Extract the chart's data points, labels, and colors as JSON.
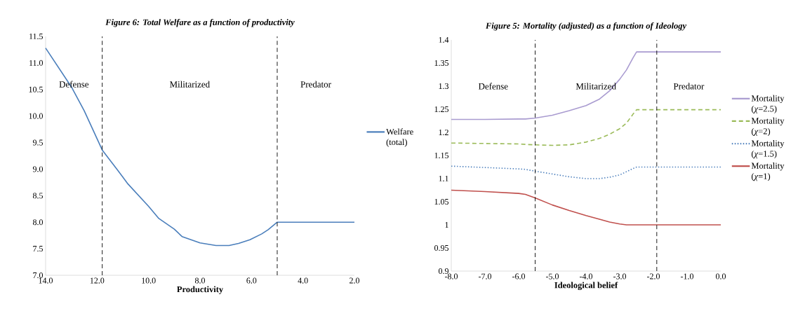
{
  "chart_data": [
    {
      "type": "line",
      "title": "Figure 6: Total Welfare as a function of productivity",
      "xlabel": "Productivity",
      "x": [
        14.0,
        13.0,
        12.5,
        11.8,
        11.2,
        10.8,
        10.0,
        9.6,
        9.0,
        8.7,
        8.0,
        7.38,
        6.87,
        6.5,
        6.06,
        5.6,
        5.35,
        5.0,
        4.0,
        3.0,
        2.0
      ],
      "series": [
        {
          "name": "Welfare (total)",
          "color": "#4a7ebb",
          "line_style": "solid",
          "values": [
            11.28,
            10.55,
            10.1,
            9.36,
            8.98,
            8.72,
            8.3,
            8.07,
            7.87,
            7.73,
            7.61,
            7.56,
            7.56,
            7.6,
            7.67,
            7.78,
            7.86,
            8.0,
            8.0,
            8.0,
            8.0
          ]
        }
      ],
      "xlim": [
        14,
        2
      ],
      "ylim": [
        7,
        11.5
      ],
      "xticks": [
        {
          "value": 14,
          "label": "14.0"
        },
        {
          "value": 12,
          "label": "12.0"
        },
        {
          "value": 10,
          "label": "10.0"
        },
        {
          "value": 8,
          "label": "8.0"
        },
        {
          "value": 6,
          "label": "6.0"
        },
        {
          "value": 4,
          "label": "4.0"
        },
        {
          "value": 2,
          "label": "2.0"
        }
      ],
      "yticks": [
        {
          "value": 7,
          "label": "7.0"
        },
        {
          "value": 7.5,
          "label": "7.5"
        },
        {
          "value": 8,
          "label": "8.0"
        },
        {
          "value": 8.5,
          "label": "8.5"
        },
        {
          "value": 9,
          "label": "9.0"
        },
        {
          "value": 9.5,
          "label": "9.5"
        },
        {
          "value": 10,
          "label": "10.0"
        },
        {
          "value": 10.5,
          "label": "10.5"
        },
        {
          "value": 11,
          "label": "11.0"
        },
        {
          "value": 11.5,
          "label": "11.5"
        }
      ],
      "ref_lines": [
        {
          "axis": "x",
          "value": 11.8,
          "color": "#000000",
          "line_style": "dashed"
        },
        {
          "axis": "x",
          "value": 5.0,
          "color": "#000000",
          "line_style": "dashed"
        }
      ],
      "annotations": [
        "Defense",
        "Militarized",
        "Predator"
      ],
      "legend": "right",
      "grid": false
    },
    {
      "type": "line",
      "title": "Figure 5: Mortality (adjusted)  as a function of Ideology",
      "xlabel": "Ideological belief",
      "x": [
        -8.0,
        -7.0,
        -6.0,
        -5.8,
        -5.5,
        -5.0,
        -4.5,
        -4.0,
        -3.6,
        -3.3,
        -3.0,
        -2.8,
        -2.6,
        -2.5,
        -2.0,
        -1.0,
        0.0
      ],
      "series": [
        {
          "name": "Mortality (*χ*=2.5)",
          "color": "#a99bd0",
          "line_style": "solid",
          "values": [
            1.228,
            1.228,
            1.229,
            1.229,
            1.231,
            1.237,
            1.247,
            1.258,
            1.272,
            1.29,
            1.315,
            1.335,
            1.362,
            1.374,
            1.374,
            1.374,
            1.374
          ]
        },
        {
          "name": "Mortality (*χ*=2)",
          "color": "#9bbb59",
          "line_style": "dashed",
          "values": [
            1.177,
            1.176,
            1.175,
            1.174,
            1.173,
            1.172,
            1.173,
            1.179,
            1.187,
            1.196,
            1.208,
            1.22,
            1.24,
            1.249,
            1.249,
            1.249,
            1.249
          ]
        },
        {
          "name": "Mortality (*χ*=1.5)",
          "color": "#4f81bd",
          "line_style": "dotted",
          "values": [
            1.127,
            1.124,
            1.121,
            1.12,
            1.116,
            1.11,
            1.104,
            1.1,
            1.1,
            1.103,
            1.108,
            1.115,
            1.122,
            1.125,
            1.125,
            1.125,
            1.125
          ]
        },
        {
          "name": "Mortality (*χ*=1)",
          "color": "#c0504d",
          "line_style": "solid",
          "values": [
            1.075,
            1.072,
            1.068,
            1.066,
            1.058,
            1.043,
            1.031,
            1.02,
            1.012,
            1.006,
            1.002,
            1.0,
            1.0,
            1.0,
            1.0,
            1.0,
            1.0
          ]
        }
      ],
      "xlim": [
        -8,
        0
      ],
      "ylim": [
        0.9,
        1.4
      ],
      "xticks": [
        {
          "value": -8,
          "label": "-8.0"
        },
        {
          "value": -7,
          "label": "-7.0"
        },
        {
          "value": -6,
          "label": "-6.0"
        },
        {
          "value": -5,
          "label": "-5.0"
        },
        {
          "value": -4,
          "label": "-4.0"
        },
        {
          "value": -3,
          "label": "-3.0"
        },
        {
          "value": -2,
          "label": "-2.0"
        },
        {
          "value": -1,
          "label": "-1.0"
        },
        {
          "value": 0,
          "label": "0.0"
        }
      ],
      "yticks": [
        0.9,
        0.95,
        1,
        1.05,
        1.1,
        1.15,
        1.2,
        1.25,
        1.3,
        1.35,
        1.4
      ],
      "ref_lines": [
        {
          "axis": "x",
          "value": -5.51,
          "color": "#000000",
          "line_style": "dashed"
        },
        {
          "axis": "x",
          "value": -1.9,
          "color": "#000000",
          "line_style": "dashed"
        }
      ],
      "annotations": [
        "Defense",
        "Militarized",
        "Predator"
      ],
      "legend": "right",
      "grid": false
    }
  ]
}
